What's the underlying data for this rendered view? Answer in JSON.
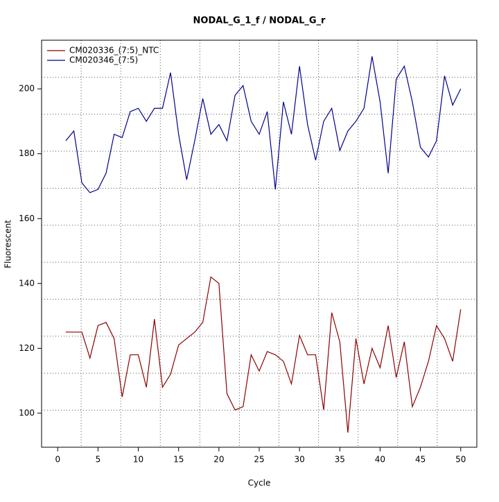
{
  "chart_data": {
    "type": "line",
    "title": "NODAL_G_1_f / NODAL_G_r",
    "x_label": "Cycle",
    "y_label": "Fluorescent",
    "x": [
      1,
      2,
      3,
      4,
      5,
      6,
      7,
      8,
      9,
      10,
      11,
      12,
      13,
      14,
      15,
      16,
      17,
      18,
      19,
      20,
      21,
      22,
      23,
      24,
      25,
      26,
      27,
      28,
      29,
      30,
      31,
      32,
      33,
      34,
      35,
      36,
      37,
      38,
      39,
      40,
      41,
      42,
      43,
      44,
      45,
      46,
      47,
      48,
      49,
      50
    ],
    "series": [
      {
        "name": "CM020336_(7:5)_NTC",
        "color": "#8b0000",
        "values": [
          125,
          125,
          125,
          117,
          127,
          128,
          123,
          105,
          118,
          118,
          108,
          129,
          108,
          112,
          121,
          123,
          125,
          128,
          142,
          140,
          106,
          101,
          102,
          118,
          113,
          119,
          118,
          116,
          109,
          124,
          118,
          118,
          101,
          131,
          122,
          94,
          123,
          109,
          120,
          114,
          127,
          111,
          122,
          102,
          108,
          116,
          127,
          123,
          116,
          132
        ]
      },
      {
        "name": "CM020346_(7:5)",
        "color": "#00008b",
        "values": [
          184,
          187,
          171,
          168,
          169,
          174,
          186,
          185,
          193,
          194,
          190,
          194,
          194,
          205,
          186,
          172,
          184,
          197,
          186,
          189,
          184,
          198,
          201,
          190,
          186,
          193,
          169,
          196,
          186,
          207,
          189,
          178,
          190,
          194,
          181,
          187,
          190,
          194,
          210,
          196,
          174,
          203,
          207,
          196,
          182,
          179,
          184,
          204,
          195,
          200
        ]
      }
    ],
    "xlim": [
      -2,
      52
    ],
    "ylim": [
      89.5,
      215
    ],
    "xticks": [
      0,
      5,
      10,
      15,
      20,
      25,
      30,
      35,
      40,
      45,
      50
    ],
    "yticks": [
      100,
      120,
      140,
      160,
      180,
      200
    ],
    "grid": true,
    "legend": "top-left"
  }
}
